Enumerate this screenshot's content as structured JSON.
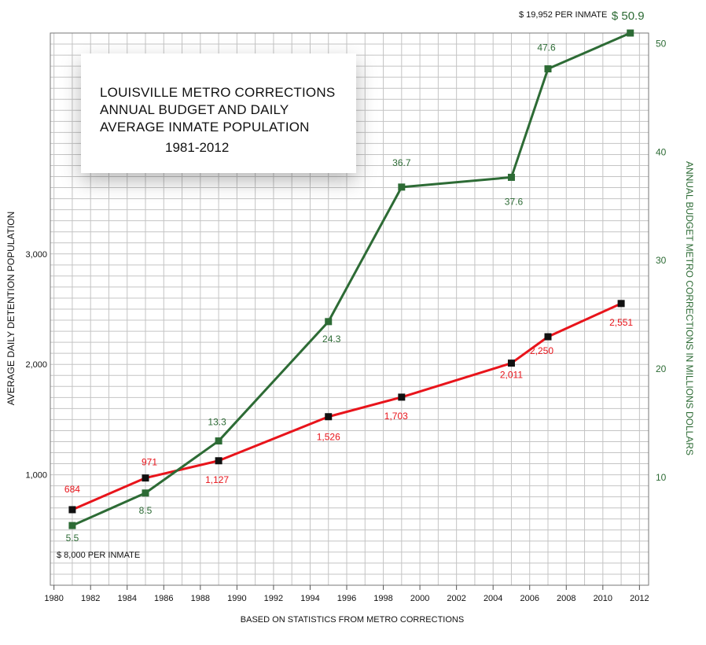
{
  "chart_data": {
    "type": "line",
    "title_lines": [
      "LOUISVILLE METRO CORRECTIONS",
      "ANNUAL BUDGET AND DAILY",
      "AVERAGE INMATE POPULATION"
    ],
    "subtitle": "1981-2012",
    "xlabel": "BASED ON STATISTICS FROM METRO CORRECTIONS",
    "ylabel_left": "AVERAGE DAILY DETENTION POPULATION",
    "ylabel_right": "ANNUAL BUDGET METRO CORRECTIONS IN MILLIONS DOLLARS",
    "x_ticks": [
      "1980",
      "1982",
      "1984",
      "1986",
      "1988",
      "1990",
      "1992",
      "1994",
      "1996",
      "1998",
      "2000",
      "2002",
      "2004",
      "2006",
      "2008",
      "2010",
      "2012"
    ],
    "xlim": [
      1979.8,
      2012.5
    ],
    "y_left_ticks": [
      "1,000",
      "2,000",
      "3,000"
    ],
    "y_left_lim": [
      0,
      5000
    ],
    "y_right_ticks": [
      "10",
      "20",
      "30",
      "40",
      "50"
    ],
    "y_right_lim": [
      0,
      50.9
    ],
    "grid": true,
    "series": [
      {
        "axis": "left",
        "color": "#e8141b",
        "marker_color": "#111111",
        "points": [
          {
            "x": 1981,
            "y": 684,
            "label": "684"
          },
          {
            "x": 1985,
            "y": 971,
            "label": "971"
          },
          {
            "x": 1989,
            "y": 1127,
            "label": "1,127"
          },
          {
            "x": 1995,
            "y": 1526,
            "label": "1,526"
          },
          {
            "x": 1999,
            "y": 1703,
            "label": "1,703"
          },
          {
            "x": 2005,
            "y": 2011,
            "label": "2,011"
          },
          {
            "x": 2007,
            "y": 2250,
            "label": "2,250"
          },
          {
            "x": 2011,
            "y": 2551,
            "label": "2,551"
          }
        ]
      },
      {
        "axis": "right",
        "color": "#2d6b35",
        "marker_color": "#2d6b35",
        "points": [
          {
            "x": 1981,
            "y": 5.5,
            "label": "5.5"
          },
          {
            "x": 1985,
            "y": 8.5,
            "label": "8.5"
          },
          {
            "x": 1989,
            "y": 13.3,
            "label": "13.3"
          },
          {
            "x": 1995,
            "y": 24.3,
            "label": "24.3"
          },
          {
            "x": 1999,
            "y": 36.7,
            "label": "36.7"
          },
          {
            "x": 2005,
            "y": 37.6,
            "label": "37.6"
          },
          {
            "x": 2007,
            "y": 47.6,
            "label": "47.6"
          },
          {
            "x": 2011.5,
            "y": 50.9,
            "label": "$ 50.9"
          }
        ]
      }
    ],
    "annotations": {
      "per_inmate_low": "$ 8,000 PER INMATE",
      "per_inmate_high": "$ 19,952 PER INMATE"
    }
  }
}
